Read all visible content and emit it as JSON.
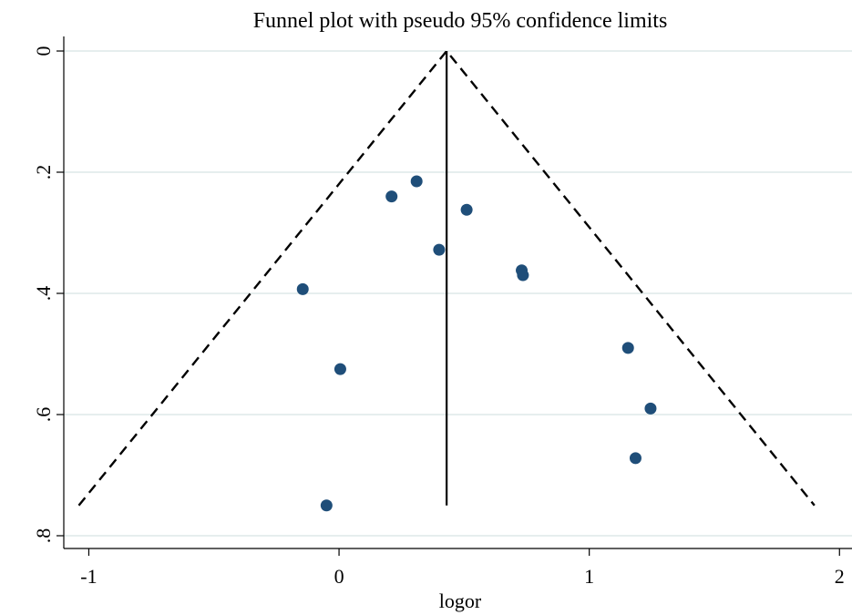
{
  "chart_data": {
    "type": "scatter",
    "title": "Funnel plot with pseudo 95% confidence limits",
    "xlabel": "logor",
    "ylabel": "",
    "xlim": [
      -1.1,
      2.05
    ],
    "ylim": [
      0,
      0.82
    ],
    "y_reversed": true,
    "x_ticks": [
      -1,
      0,
      1,
      2
    ],
    "x_tick_labels": [
      "-1",
      "0",
      "1",
      "2"
    ],
    "y_ticks": [
      0,
      0.2,
      0.4,
      0.6,
      0.8
    ],
    "y_tick_labels": [
      "0",
      ".2",
      ".4",
      ".6",
      ".8"
    ],
    "grid": "horizontal",
    "pooled_estimate": 0.43,
    "pseudo_ci_limits": {
      "se_max": 0.75,
      "lower_at_se_max": -1.04,
      "upper_at_se_max": 1.9
    },
    "dot_color": "#1f4e79",
    "points": [
      {
        "x": 0.31,
        "y": 0.215
      },
      {
        "x": 0.21,
        "y": 0.24
      },
      {
        "x": 0.51,
        "y": 0.262
      },
      {
        "x": 0.4,
        "y": 0.328
      },
      {
        "x": 0.73,
        "y": 0.362
      },
      {
        "x": 0.735,
        "y": 0.37
      },
      {
        "x": -0.145,
        "y": 0.393
      },
      {
        "x": 1.155,
        "y": 0.49
      },
      {
        "x": 0.005,
        "y": 0.525
      },
      {
        "x": 1.245,
        "y": 0.59
      },
      {
        "x": 1.185,
        "y": 0.672
      },
      {
        "x": -0.05,
        "y": 0.75
      }
    ]
  }
}
